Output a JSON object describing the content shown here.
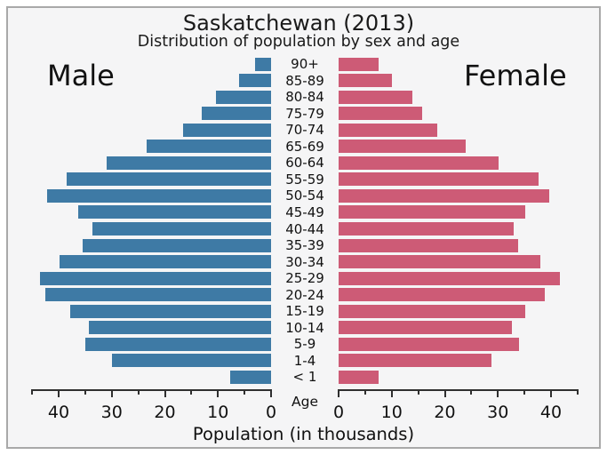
{
  "chart_data": {
    "type": "bar",
    "subtype": "population-pyramid",
    "title": "Saskatchewan (2013)",
    "subtitle": "Distribution of population by sex and age",
    "xlabel": "Population (in thousands)",
    "center_label": "Age",
    "categories_top_to_bottom": [
      "90+",
      "85-89",
      "80-84",
      "75-79",
      "70-74",
      "65-69",
      "60-64",
      "55-59",
      "50-54",
      "45-49",
      "40-44",
      "35-39",
      "30-34",
      "25-29",
      "20-24",
      "15-19",
      "10-14",
      "5-9",
      "1-4",
      "< 1"
    ],
    "series": [
      {
        "name": "Male",
        "side": "left",
        "color": "#3e7aa5",
        "values": [
          3.0,
          6.1,
          10.3,
          13.1,
          16.6,
          23.4,
          31.0,
          38.5,
          42.2,
          36.3,
          33.6,
          35.5,
          39.8,
          43.5,
          42.5,
          37.8,
          34.3,
          35.0,
          30.0,
          7.7
        ]
      },
      {
        "name": "Female",
        "side": "right",
        "color": "#cd5b76",
        "values": [
          7.6,
          10.1,
          13.9,
          15.8,
          18.5,
          23.9,
          30.2,
          37.6,
          39.6,
          35.1,
          32.9,
          33.8,
          38.0,
          41.7,
          38.9,
          35.2,
          32.7,
          34.0,
          28.8,
          7.5
        ]
      }
    ],
    "xlim": [
      0,
      45
    ],
    "x_major_ticks": [
      0,
      10,
      20,
      30,
      40
    ],
    "x_minor_tick_step": 5,
    "grid": false,
    "legend_position": "series labels inside plot, upper corners",
    "colors": {
      "male": "#3e7aa5",
      "female": "#cd5b76",
      "axis": "#2f2f2f",
      "plot_background": "#f5f5f6",
      "frame_border": "#a9a9a9"
    }
  }
}
